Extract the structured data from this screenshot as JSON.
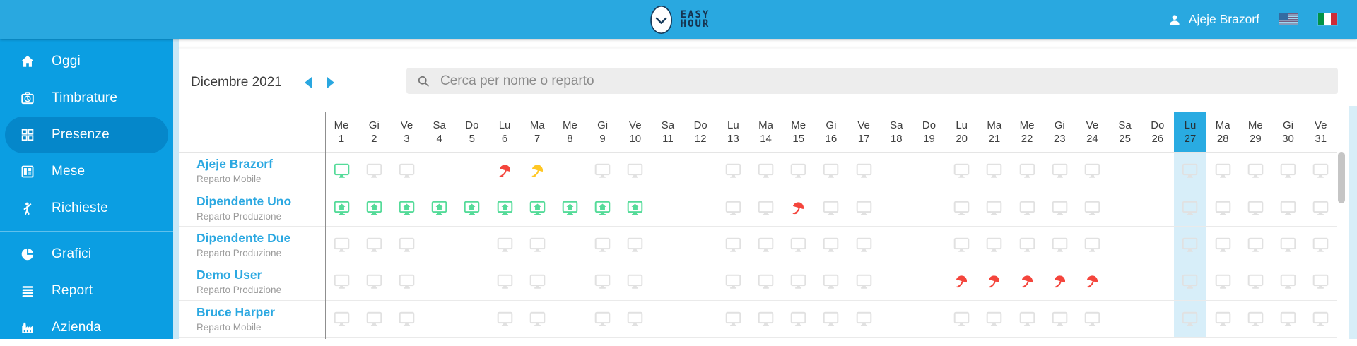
{
  "topbar": {
    "logo_line1": "EASY",
    "logo_line2": "HOUR",
    "user_name": "Ajeje Brazorf",
    "flags": [
      "us-flag",
      "it-flag"
    ]
  },
  "sidebar": {
    "items": [
      {
        "label": "Oggi",
        "icon": "home-icon",
        "active": false
      },
      {
        "label": "Timbrature",
        "icon": "punch-clock-icon",
        "active": false
      },
      {
        "label": "Presenze",
        "icon": "grid-icon",
        "active": true
      },
      {
        "label": "Mese",
        "icon": "month-icon",
        "active": false
      },
      {
        "label": "Richieste",
        "icon": "person-request-icon",
        "active": false
      },
      {
        "type": "divider"
      },
      {
        "label": "Grafici",
        "icon": "pie-chart-icon",
        "active": false
      },
      {
        "label": "Report",
        "icon": "report-icon",
        "active": false
      },
      {
        "label": "Azienda",
        "icon": "factory-icon",
        "active": false
      }
    ]
  },
  "toolbar": {
    "month_label": "Dicembre 2021",
    "search_placeholder": "Cerca per nome o reparto"
  },
  "grid": {
    "today_day": 27,
    "days": [
      {
        "dow": "Me",
        "num": 1
      },
      {
        "dow": "Gi",
        "num": 2
      },
      {
        "dow": "Ve",
        "num": 3
      },
      {
        "dow": "Sa",
        "num": 4
      },
      {
        "dow": "Do",
        "num": 5
      },
      {
        "dow": "Lu",
        "num": 6
      },
      {
        "dow": "Ma",
        "num": 7
      },
      {
        "dow": "Me",
        "num": 8
      },
      {
        "dow": "Gi",
        "num": 9
      },
      {
        "dow": "Ve",
        "num": 10
      },
      {
        "dow": "Sa",
        "num": 11
      },
      {
        "dow": "Do",
        "num": 12
      },
      {
        "dow": "Lu",
        "num": 13
      },
      {
        "dow": "Ma",
        "num": 14
      },
      {
        "dow": "Me",
        "num": 15
      },
      {
        "dow": "Gi",
        "num": 16
      },
      {
        "dow": "Ve",
        "num": 17
      },
      {
        "dow": "Sa",
        "num": 18
      },
      {
        "dow": "Do",
        "num": 19
      },
      {
        "dow": "Lu",
        "num": 20
      },
      {
        "dow": "Ma",
        "num": 21
      },
      {
        "dow": "Me",
        "num": 22
      },
      {
        "dow": "Gi",
        "num": 23
      },
      {
        "dow": "Ve",
        "num": 24
      },
      {
        "dow": "Sa",
        "num": 25
      },
      {
        "dow": "Do",
        "num": 26
      },
      {
        "dow": "Lu",
        "num": 27
      },
      {
        "dow": "Ma",
        "num": 28
      },
      {
        "dow": "Me",
        "num": 29
      },
      {
        "dow": "Gi",
        "num": 30
      },
      {
        "dow": "Ve",
        "num": 31
      }
    ],
    "rows": [
      {
        "name": "Ajeje Brazorf",
        "dept": "Reparto Mobile",
        "cells": [
          "monitor-green",
          "monitor",
          "monitor",
          "",
          "",
          "umbrella-red",
          "umbrella-yellow",
          "",
          "monitor",
          "monitor",
          "",
          "",
          "monitor",
          "monitor",
          "monitor",
          "monitor",
          "monitor",
          "",
          "",
          "monitor",
          "monitor",
          "monitor",
          "monitor",
          "monitor",
          "",
          "",
          "monitor",
          "monitor",
          "monitor",
          "monitor",
          "monitor"
        ]
      },
      {
        "name": "Dipendente Uno",
        "dept": "Reparto Produzione",
        "cells": [
          "monitor-home",
          "monitor-home",
          "monitor-home",
          "monitor-home",
          "monitor-home",
          "monitor-home",
          "monitor-home",
          "monitor-home",
          "monitor-home",
          "monitor-home",
          "",
          "",
          "monitor",
          "monitor",
          "umbrella-red",
          "monitor",
          "monitor",
          "",
          "",
          "monitor",
          "monitor",
          "monitor",
          "monitor",
          "monitor",
          "",
          "",
          "monitor",
          "monitor",
          "monitor",
          "monitor",
          "monitor"
        ]
      },
      {
        "name": "Dipendente Due",
        "dept": "Reparto Produzione",
        "cells": [
          "monitor",
          "monitor",
          "monitor",
          "",
          "",
          "monitor",
          "monitor",
          "",
          "monitor",
          "monitor",
          "",
          "",
          "monitor",
          "monitor",
          "monitor",
          "monitor",
          "monitor",
          "",
          "",
          "monitor",
          "monitor",
          "monitor",
          "monitor",
          "monitor",
          "",
          "",
          "monitor",
          "monitor",
          "monitor",
          "monitor",
          "monitor"
        ]
      },
      {
        "name": "Demo User",
        "dept": "Reparto Produzione",
        "cells": [
          "monitor",
          "monitor",
          "monitor",
          "",
          "",
          "monitor",
          "monitor",
          "",
          "monitor",
          "monitor",
          "",
          "",
          "monitor",
          "monitor",
          "monitor",
          "monitor",
          "monitor",
          "",
          "",
          "umbrella-red",
          "umbrella-red",
          "umbrella-red",
          "umbrella-red",
          "umbrella-red",
          "",
          "",
          "monitor",
          "monitor",
          "monitor",
          "monitor",
          "monitor"
        ]
      },
      {
        "name": "Bruce Harper",
        "dept": "Reparto Mobile",
        "cells": [
          "monitor",
          "monitor",
          "monitor",
          "",
          "",
          "monitor",
          "monitor",
          "",
          "monitor",
          "monitor",
          "",
          "",
          "monitor",
          "monitor",
          "monitor",
          "monitor",
          "monitor",
          "",
          "",
          "monitor",
          "monitor",
          "monitor",
          "monitor",
          "monitor",
          "",
          "",
          "monitor",
          "monitor",
          "monitor",
          "monitor",
          "monitor"
        ]
      }
    ]
  },
  "colors": {
    "topbar": "#29A8E0",
    "sidebar": "#0B9EE2",
    "sidebar_active": "#0587CA",
    "accent": "#29ABE2",
    "today_column": "#D7EEF9",
    "monitor_planned": "#E1E1E1",
    "monitor_present": "#55DB99",
    "smart_working": "#55DB99",
    "vacation_red": "#F4453C",
    "permit_yellow": "#FFC724"
  }
}
